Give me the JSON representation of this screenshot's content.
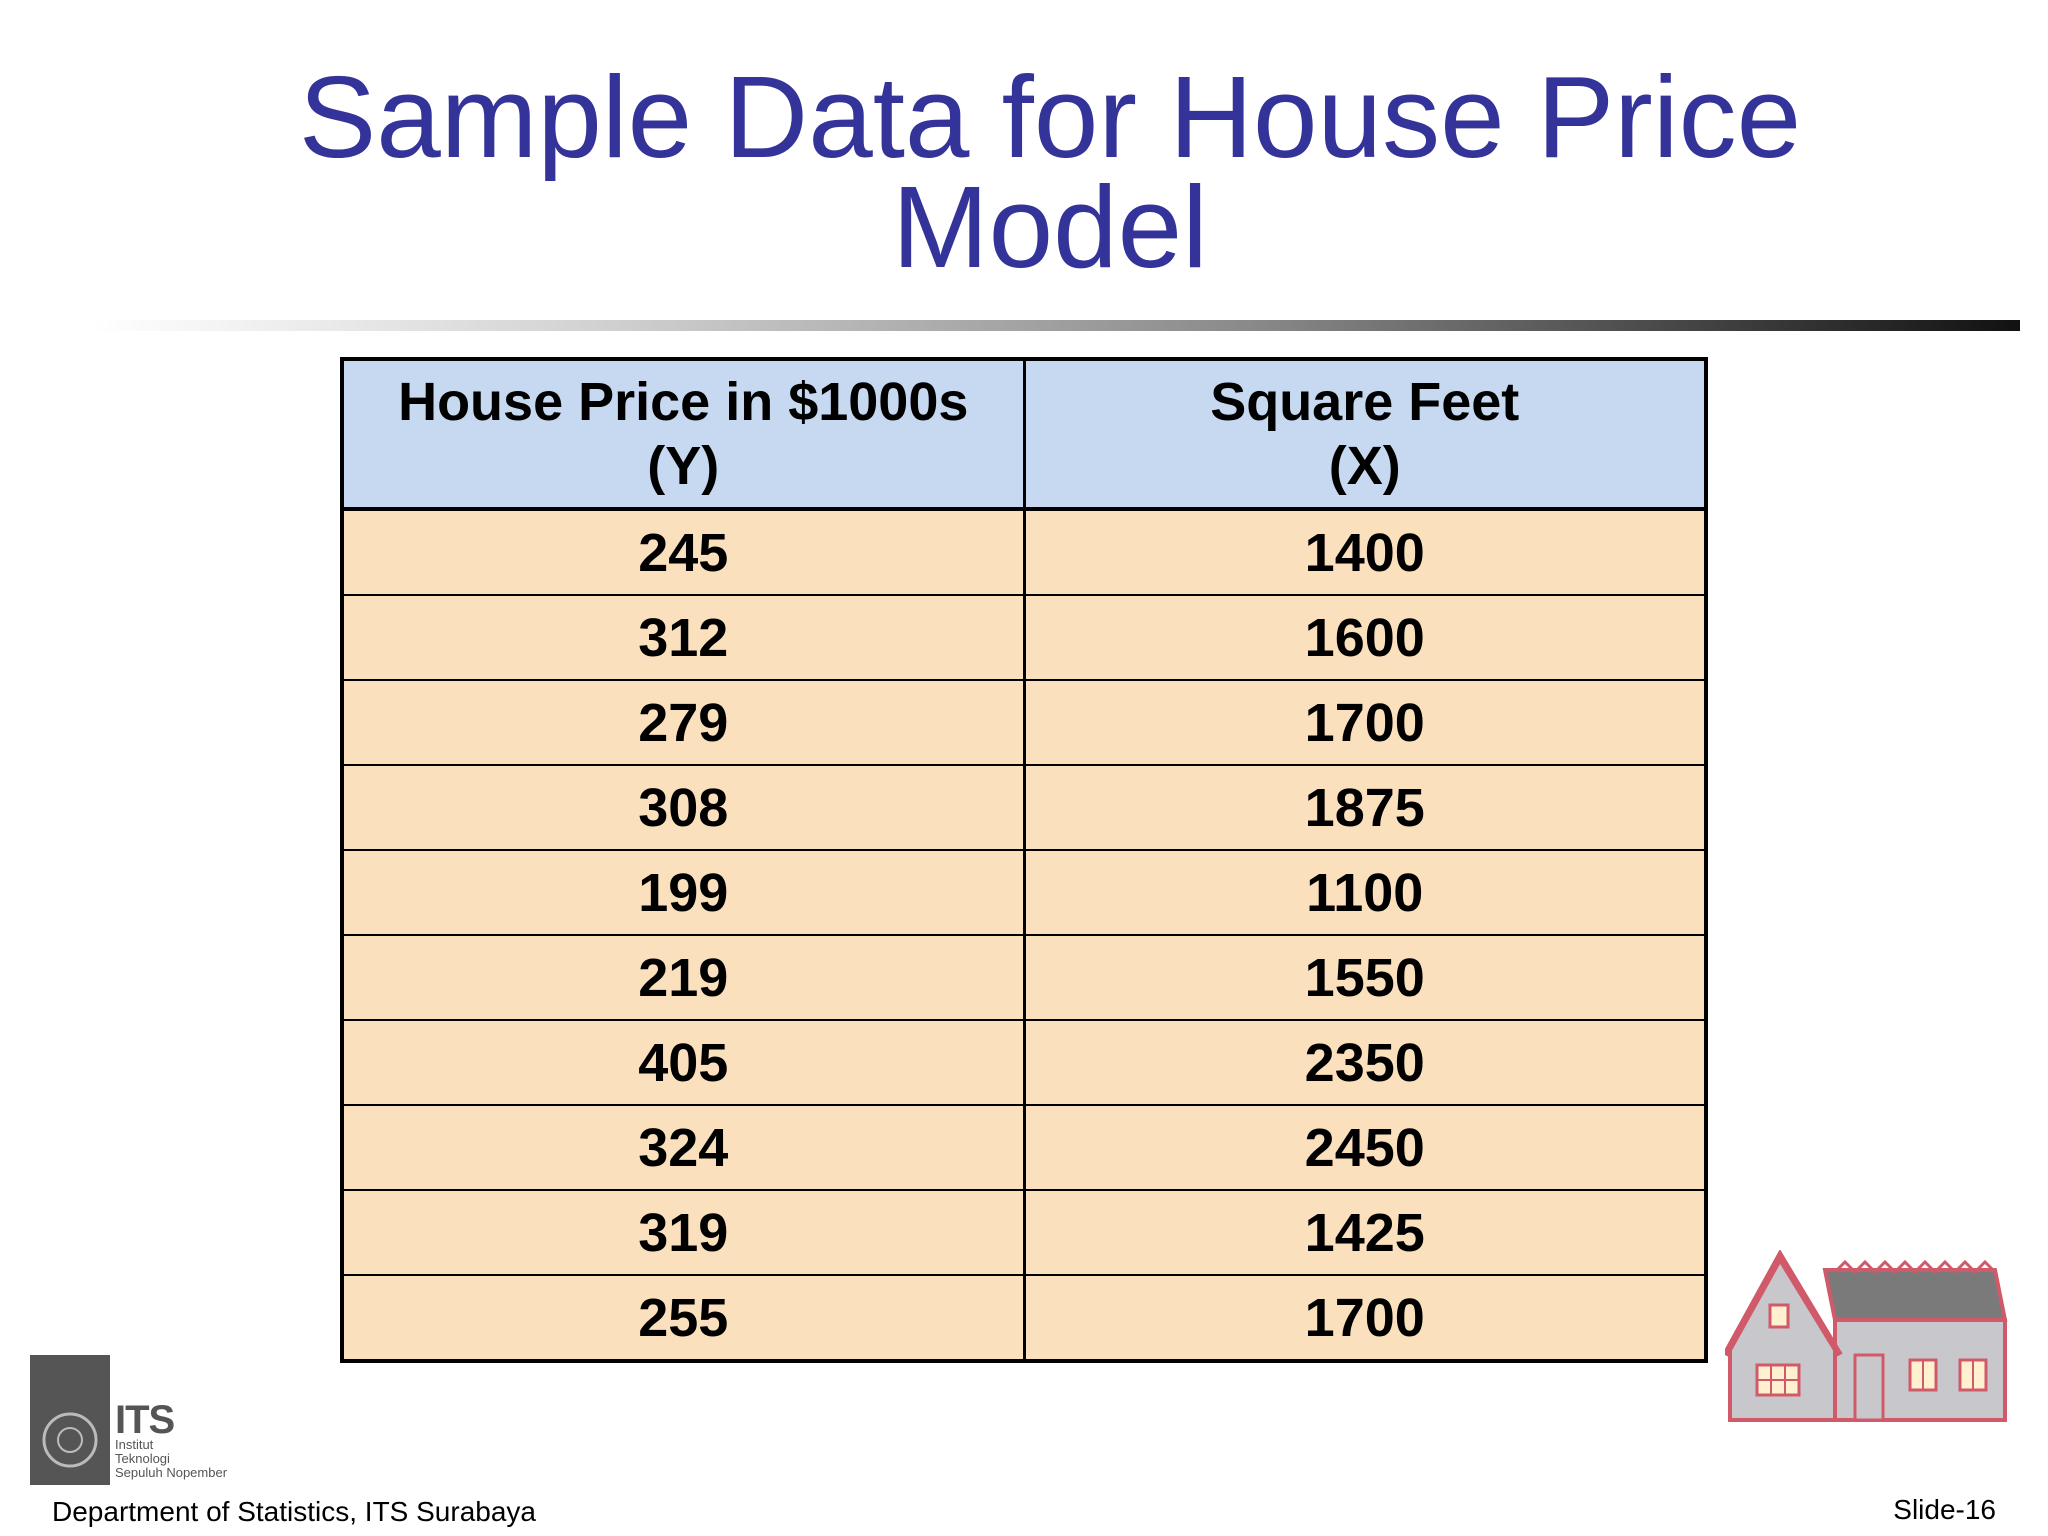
{
  "slide": {
    "title_line1": "Sample Data for House Price",
    "title_line2": "Model"
  },
  "table": {
    "headers": [
      {
        "line1": "House Price in $1000s",
        "line2": "(Y)"
      },
      {
        "line1": "Square Feet",
        "line2": "(X)"
      }
    ],
    "rows": [
      [
        "245",
        "1400"
      ],
      [
        "312",
        "1600"
      ],
      [
        "279",
        "1700"
      ],
      [
        "308",
        "1875"
      ],
      [
        "199",
        "1100"
      ],
      [
        "219",
        "1550"
      ],
      [
        "405",
        "2350"
      ],
      [
        "324",
        "2450"
      ],
      [
        "319",
        "1425"
      ],
      [
        "255",
        "1700"
      ]
    ]
  },
  "logo": {
    "acronym": "ITS",
    "line1": "Institut",
    "line2": "Teknologi",
    "line3": "Sepuluh Nopember"
  },
  "footer": {
    "department": "Department of  Statistics, ITS Surabaya",
    "slide_number": "Slide-16"
  },
  "colors": {
    "title": "#333399",
    "header_bg": "#c6d9f1",
    "row_bg": "#fbe0be"
  },
  "icons": {
    "house": "house-icon",
    "logo": "its-logo-icon"
  }
}
